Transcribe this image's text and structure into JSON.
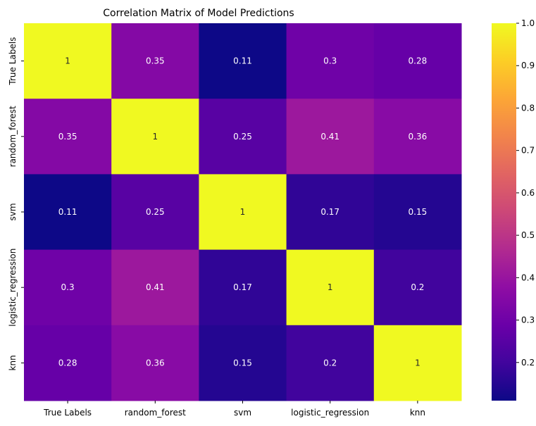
{
  "chart_data": {
    "type": "heatmap",
    "title": "Correlation Matrix of Model Predictions",
    "xlabel": "",
    "ylabel": "",
    "x_categories": [
      "True Labels",
      "random_forest",
      "svm",
      "logistic_regression",
      "knn"
    ],
    "y_categories": [
      "True Labels",
      "random_forest",
      "svm",
      "logistic_regression",
      "knn"
    ],
    "values": [
      [
        1,
        0.35,
        0.11,
        0.3,
        0.28
      ],
      [
        0.35,
        1,
        0.25,
        0.41,
        0.36
      ],
      [
        0.11,
        0.25,
        1,
        0.17,
        0.15
      ],
      [
        0.3,
        0.41,
        0.17,
        1,
        0.2
      ],
      [
        0.28,
        0.36,
        0.15,
        0.2,
        1
      ]
    ],
    "cell_labels": [
      [
        "1",
        "0.35",
        "0.11",
        "0.3",
        "0.28"
      ],
      [
        "0.35",
        "1",
        "0.25",
        "0.41",
        "0.36"
      ],
      [
        "0.11",
        "0.25",
        "1",
        "0.17",
        "0.15"
      ],
      [
        "0.3",
        "0.41",
        "0.17",
        "1",
        "0.2"
      ],
      [
        "0.28",
        "0.36",
        "0.15",
        "0.2",
        "1"
      ]
    ],
    "colormap": "plasma",
    "vmin": 0.11,
    "vmax": 1.0,
    "colorbar_ticks": [
      "0.2",
      "0.3",
      "0.4",
      "0.5",
      "0.6",
      "0.7",
      "0.8",
      "0.9",
      "1.0"
    ],
    "colorbar_tick_values": [
      0.2,
      0.3,
      0.4,
      0.5,
      0.6,
      0.7,
      0.8,
      0.9,
      1.0
    ],
    "grid": false,
    "legend": "colorbar-right"
  }
}
